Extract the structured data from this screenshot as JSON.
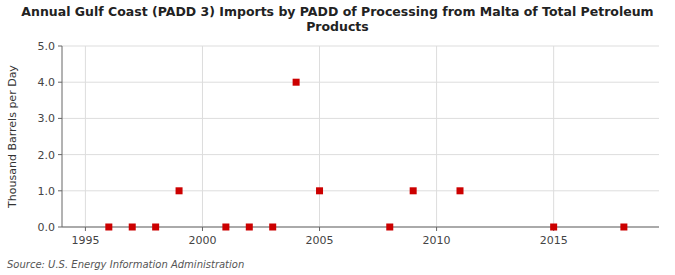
{
  "chart_data": {
    "type": "scatter",
    "title": "Annual Gulf Coast (PADD 3) Imports by PADD of Processing from Malta of Total Petroleum\nProducts",
    "y_label": "Thousand Barrels per Day",
    "annotations": [
      "Source: U.S. Energy Information Administration"
    ],
    "x": [
      1996,
      1997,
      1998,
      1999,
      2001,
      2002,
      2003,
      2004,
      2005,
      2008,
      2009,
      2011,
      2015,
      2018
    ],
    "values": [
      0.0,
      0.0,
      0.0,
      1.0,
      0.0,
      0.0,
      0.0,
      4.0,
      1.0,
      0.0,
      1.0,
      1.0,
      0.0,
      0.0
    ],
    "color": "#cc0000",
    "marker": "square",
    "xlim": [
      1994.0,
      2019.5
    ],
    "ylim": [
      0.0,
      5.0
    ],
    "xticks": [
      1995,
      2000,
      2005,
      2010,
      2015
    ],
    "yticks": [
      {
        "value": 0.0,
        "label": "0.0"
      },
      {
        "value": 1.0,
        "label": "1.0"
      },
      {
        "value": 2.0,
        "label": "2.0"
      },
      {
        "value": 3.0,
        "label": "3.0"
      },
      {
        "value": 4.0,
        "label": "4.0"
      },
      {
        "value": 5.0,
        "label": "5.0"
      }
    ],
    "grid": true
  }
}
